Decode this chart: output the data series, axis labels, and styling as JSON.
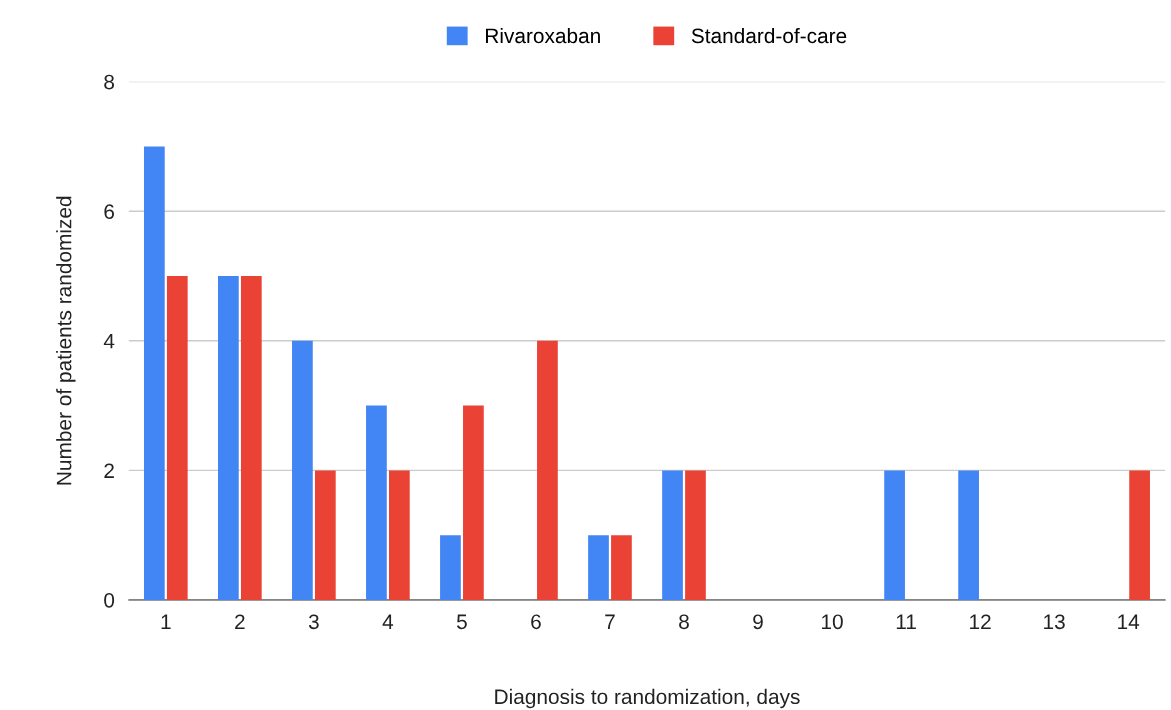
{
  "chart_data": {
    "type": "bar",
    "xlabel": "Diagnosis to randomization, days",
    "ylabel": "Number of patients randomized",
    "categories": [
      "1",
      "2",
      "3",
      "4",
      "5",
      "6",
      "7",
      "8",
      "9",
      "10",
      "11",
      "12",
      "13",
      "14"
    ],
    "series": [
      {
        "name": "Rivaroxaban",
        "color": "#4285f4",
        "values": [
          7,
          5,
          4,
          3,
          1,
          0,
          1,
          2,
          0,
          0,
          2,
          2,
          0,
          0
        ]
      },
      {
        "name": "Standard-of-care",
        "color": "#ea4335",
        "values": [
          5,
          5,
          2,
          2,
          3,
          4,
          1,
          2,
          0,
          0,
          0,
          0,
          0,
          2
        ]
      }
    ],
    "ylim": [
      0,
      8
    ],
    "yticks": [
      0,
      2,
      4,
      6,
      8
    ],
    "grid": "y",
    "legend": "top"
  }
}
